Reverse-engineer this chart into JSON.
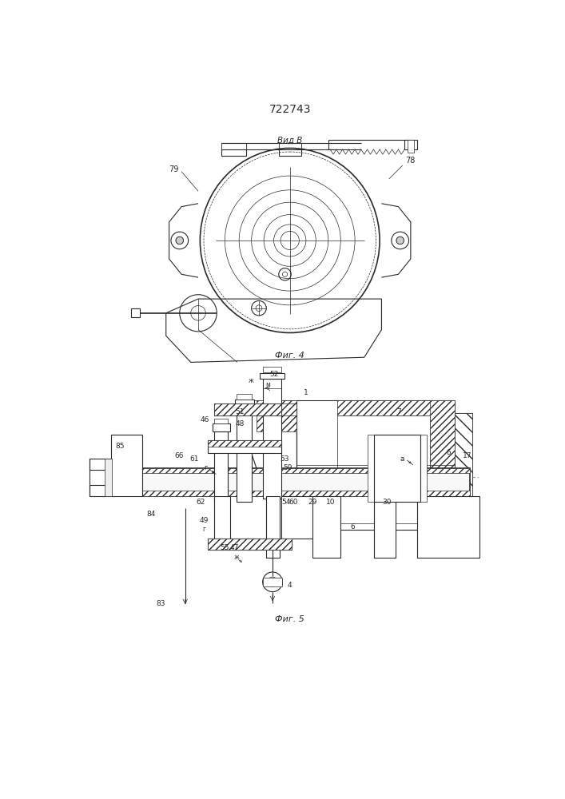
{
  "title": "722743",
  "bg_color": "#ffffff",
  "line_color": "#2a2a2a",
  "fig4_caption": "Фиг. 4",
  "fig5_caption": "Фиг. 5",
  "vid_label": "Вид В"
}
